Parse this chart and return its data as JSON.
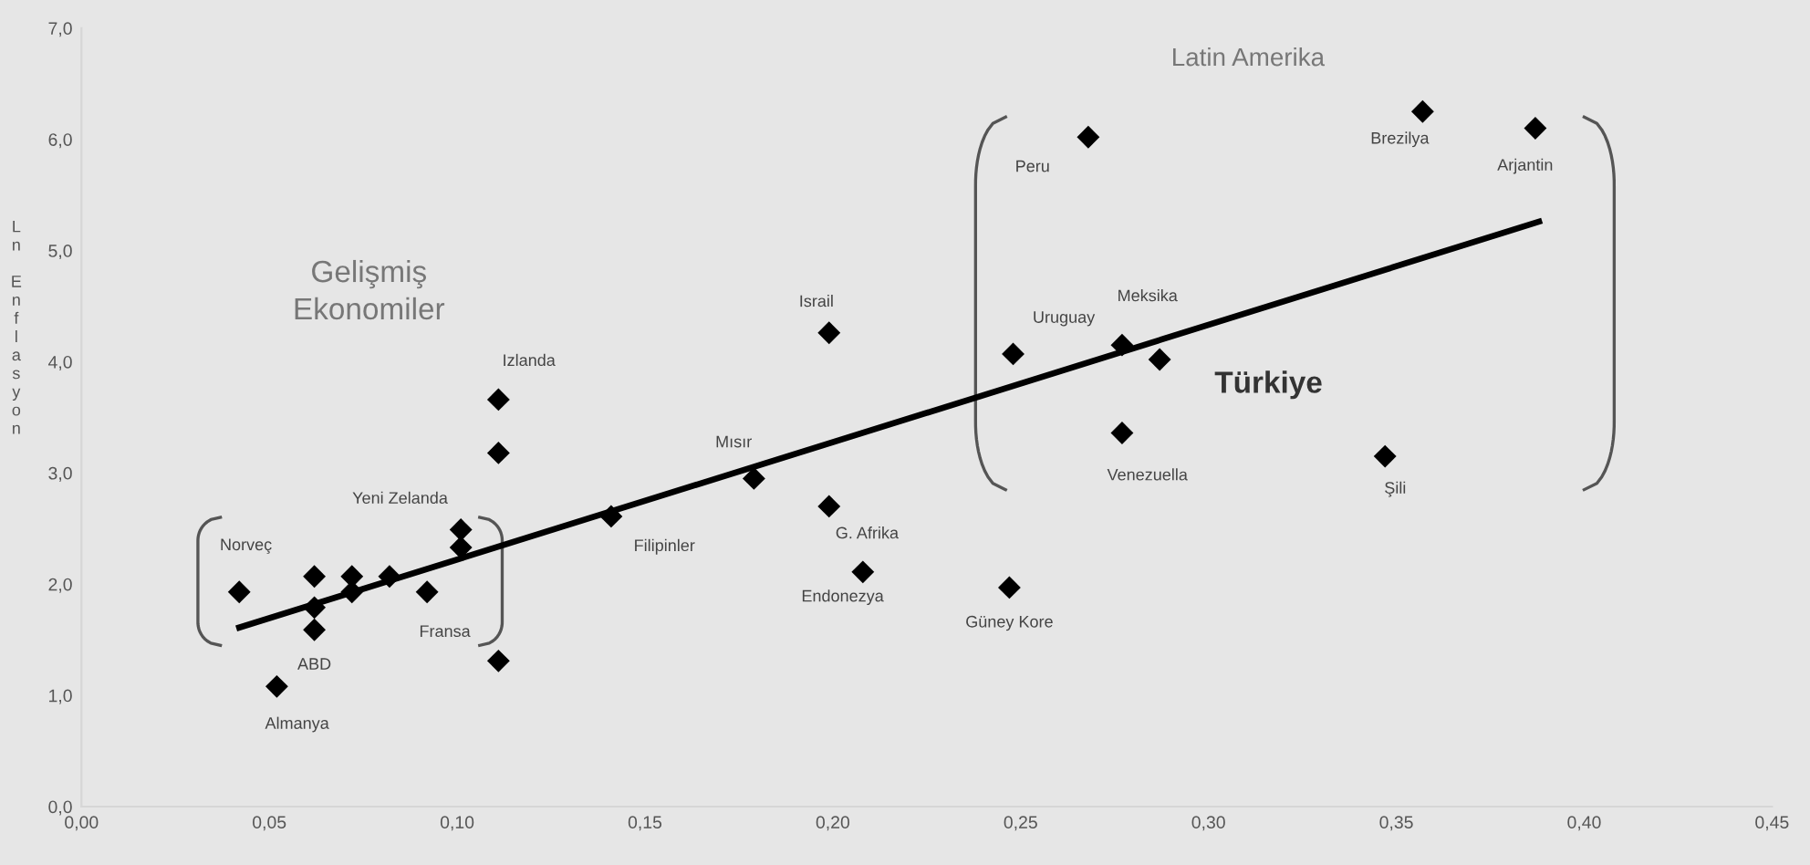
{
  "chart_data": {
    "type": "scatter",
    "ylabel": "Ln Enflasyon",
    "xlim": [
      0,
      0.45
    ],
    "ylim": [
      0,
      7
    ],
    "xticks": [
      {
        "value": 0,
        "label": "0,00"
      },
      {
        "value": 0.05,
        "label": "0,05"
      },
      {
        "value": 0.1,
        "label": "0,10"
      },
      {
        "value": 0.15,
        "label": "0,15"
      },
      {
        "value": 0.2,
        "label": "0,20"
      },
      {
        "value": 0.25,
        "label": "0,25"
      },
      {
        "value": 0.3,
        "label": "0,30"
      },
      {
        "value": 0.35,
        "label": "0,35"
      },
      {
        "value": 0.4,
        "label": "0,40"
      },
      {
        "value": 0.45,
        "label": "0,45"
      }
    ],
    "yticks": [
      {
        "value": 0,
        "label": "0,0"
      },
      {
        "value": 1,
        "label": "1,0"
      },
      {
        "value": 2,
        "label": "2,0"
      },
      {
        "value": 3,
        "label": "3,0"
      },
      {
        "value": 4,
        "label": "4,0"
      },
      {
        "value": 5,
        "label": "5,0"
      },
      {
        "value": 6,
        "label": "6,0"
      },
      {
        "value": 7,
        "label": "7,0"
      }
    ],
    "grid": false,
    "marker": "diamond",
    "series": [
      {
        "color": "#000000",
        "x": [
          0.042,
          0.062,
          0.062,
          0.062,
          0.072,
          0.072,
          0.082,
          0.092,
          0.101,
          0.101,
          0.111,
          0.111,
          0.111,
          0.052,
          0.141,
          0.179,
          0.199,
          0.208,
          0.199,
          0.247,
          0.248,
          0.277,
          0.287,
          0.277,
          0.268,
          0.357,
          0.387,
          0.347
        ],
        "values": [
          1.93,
          2.07,
          1.79,
          1.59,
          2.07,
          1.93,
          2.07,
          1.93,
          2.49,
          2.33,
          3.66,
          3.18,
          1.31,
          1.08,
          2.61,
          2.95,
          2.7,
          2.11,
          4.26,
          1.97,
          4.07,
          4.15,
          4.02,
          3.36,
          6.02,
          6.25,
          6.1,
          3.15
        ]
      },
      {
        "type": "line",
        "marker": "none",
        "color": "#000000",
        "x": [
          0.042,
          0.388
        ],
        "values": [
          1.61,
          5.26
        ]
      }
    ],
    "annotations": [
      {
        "text": "Norveç",
        "x": 0.062,
        "y": 2.07
      },
      {
        "text": "ABD",
        "x": 0.062,
        "y": 1.59
      },
      {
        "text": "Almanya",
        "x": 0.052,
        "y": 1.08
      },
      {
        "text": "Fransa",
        "x": 0.092,
        "y": 1.93
      },
      {
        "text": "Yeni Zelanda",
        "x": 0.101,
        "y": 2.49
      },
      {
        "text": "Izlanda",
        "x": 0.111,
        "y": 3.66
      },
      {
        "text": "Filipinler",
        "x": 0.141,
        "y": 2.61
      },
      {
        "text": "Mısır",
        "x": 0.179,
        "y": 2.95
      },
      {
        "text": "G. Afrika",
        "x": 0.199,
        "y": 2.7
      },
      {
        "text": "Endonezya",
        "x": 0.208,
        "y": 2.11
      },
      {
        "text": "Israil",
        "x": 0.199,
        "y": 4.26
      },
      {
        "text": "Güney Kore",
        "x": 0.247,
        "y": 1.97
      },
      {
        "text": "Uruguay",
        "x": 0.248,
        "y": 4.07
      },
      {
        "text": "Meksika",
        "x": 0.277,
        "y": 4.15
      },
      {
        "text": "Türkiye",
        "x": 0.287,
        "y": 4.02
      },
      {
        "text": "Venezuella",
        "x": 0.277,
        "y": 3.36
      },
      {
        "text": "Peru",
        "x": 0.268,
        "y": 6.02
      },
      {
        "text": "Brezilya",
        "x": 0.357,
        "y": 6.25
      },
      {
        "text": "Arjantin",
        "x": 0.387,
        "y": 6.1
      },
      {
        "text": "Şili",
        "x": 0.347,
        "y": 3.15
      },
      "Gelişmiş\nEkonomiler",
      "Latin Amerika"
    ]
  }
}
